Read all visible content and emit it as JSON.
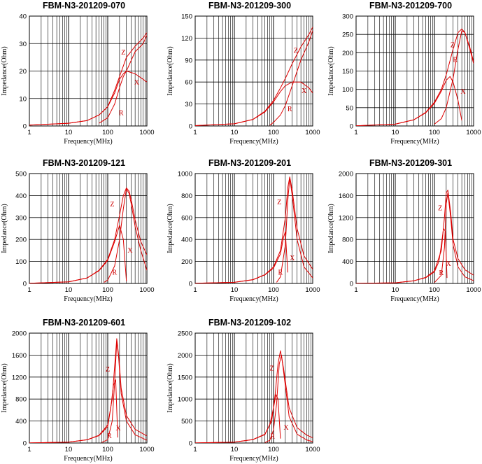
{
  "colors": {
    "curve": "#dd0000",
    "grid": "#000000",
    "background": "#ffffff"
  },
  "axes": {
    "xlabel": "Frequency(MHz)",
    "ylabel": "Impedance(Ohm)",
    "x_scale": "log",
    "xlim": [
      1,
      1000
    ],
    "x_ticks": [
      "1",
      "10",
      "100",
      "1000"
    ]
  },
  "chart_data": [
    {
      "type": "line",
      "title": "FBM-N3-201209-070",
      "xlabel": "Frequency(MHz)",
      "ylabel": "Impedance(Ohm)",
      "x_scale": "log",
      "xlim": [
        1,
        1000
      ],
      "ylim": [
        0,
        40
      ],
      "y_ticks": [
        0,
        10,
        20,
        30,
        40
      ],
      "series": [
        {
          "name": "Z",
          "x": [
            1,
            10,
            30,
            60,
            100,
            150,
            200,
            300,
            500,
            800,
            1000
          ],
          "values": [
            0.3,
            1,
            2,
            4,
            7,
            13,
            18,
            25,
            29,
            32,
            34
          ]
        },
        {
          "name": "R",
          "x": [
            60,
            100,
            150,
            200,
            250,
            300,
            500,
            800,
            1000
          ],
          "values": [
            1,
            3,
            8,
            14,
            18,
            20,
            27,
            30,
            33
          ]
        },
        {
          "name": "X",
          "x": [
            1,
            10,
            30,
            60,
            100,
            150,
            200,
            250,
            300,
            500,
            800,
            1000
          ],
          "values": [
            0.3,
            1,
            2,
            4,
            7,
            12,
            17,
            19,
            20,
            19,
            17,
            16
          ]
        }
      ],
      "labels": [
        {
          "text": "Z",
          "x": 250,
          "y": 26
        },
        {
          "text": "R",
          "x": 220,
          "y": 4
        },
        {
          "text": "X",
          "x": 550,
          "y": 15
        }
      ]
    },
    {
      "type": "line",
      "title": "FBM-N3-201209-300",
      "xlabel": "Frequency(MHz)",
      "ylabel": "Impedance(Ohm)",
      "x_scale": "log",
      "xlim": [
        1,
        1000
      ],
      "ylim": [
        0,
        150
      ],
      "y_ticks": [
        0,
        30,
        60,
        90,
        120,
        150
      ],
      "series": [
        {
          "name": "Z",
          "x": [
            1,
            10,
            30,
            60,
            100,
            150,
            200,
            300,
            500,
            800,
            1000
          ],
          "values": [
            0.5,
            3,
            9,
            20,
            35,
            52,
            65,
            85,
            108,
            125,
            135
          ]
        },
        {
          "name": "R",
          "x": [
            80,
            100,
            150,
            200,
            300,
            500,
            800,
            1000
          ],
          "values": [
            1,
            5,
            15,
            28,
            55,
            90,
            115,
            130
          ]
        },
        {
          "name": "X",
          "x": [
            1,
            10,
            30,
            60,
            100,
            150,
            200,
            300,
            500,
            800,
            1000
          ],
          "values": [
            0.5,
            3,
            9,
            19,
            33,
            47,
            55,
            60,
            60,
            52,
            45
          ]
        }
      ],
      "labels": [
        {
          "text": "Z",
          "x": 370,
          "y": 100
        },
        {
          "text": "R",
          "x": 260,
          "y": 20
        },
        {
          "text": "X",
          "x": 600,
          "y": 45
        }
      ]
    },
    {
      "type": "line",
      "title": "FBM-N3-201209-700",
      "xlabel": "Frequency(MHz)",
      "ylabel": "Impedance(Ohm)",
      "x_scale": "log",
      "xlim": [
        1,
        1000
      ],
      "ylim": [
        0,
        300
      ],
      "y_ticks": [
        0,
        50,
        100,
        150,
        200,
        250,
        300
      ],
      "series": [
        {
          "name": "Z",
          "x": [
            1,
            10,
            30,
            60,
            100,
            150,
            200,
            300,
            400,
            500,
            600,
            800,
            1000
          ],
          "values": [
            0.5,
            5,
            17,
            37,
            65,
            100,
            140,
            210,
            255,
            265,
            255,
            215,
            175
          ]
        },
        {
          "name": "R",
          "x": [
            100,
            150,
            200,
            300,
            400,
            500,
            600,
            800,
            1000
          ],
          "values": [
            5,
            20,
            50,
            130,
            210,
            260,
            255,
            210,
            170
          ]
        },
        {
          "name": "X",
          "x": [
            1,
            10,
            30,
            60,
            100,
            150,
            200,
            250,
            300,
            400,
            500
          ],
          "values": [
            0.5,
            5,
            17,
            36,
            62,
            95,
            125,
            135,
            120,
            70,
            15
          ]
        }
      ],
      "labels": [
        {
          "text": "Z",
          "x": 290,
          "y": 215
        },
        {
          "text": "R",
          "x": 340,
          "y": 175
        },
        {
          "text": "X",
          "x": 540,
          "y": 88
        }
      ]
    },
    {
      "type": "line",
      "title": "FBM-N3-201209-121",
      "xlabel": "Frequency(MHz)",
      "ylabel": "Impedance(Ohm)",
      "x_scale": "log",
      "xlim": [
        1,
        1000
      ],
      "ylim": [
        0,
        500
      ],
      "y_ticks": [
        0,
        100,
        200,
        300,
        400,
        500
      ],
      "series": [
        {
          "name": "Z",
          "x": [
            1,
            10,
            30,
            60,
            100,
            150,
            200,
            250,
            300,
            350,
            400,
            500,
            700,
            1000
          ],
          "values": [
            0.5,
            7,
            25,
            60,
            110,
            200,
            310,
            400,
            435,
            420,
            380,
            290,
            190,
            130
          ]
        },
        {
          "name": "R",
          "x": [
            80,
            100,
            150,
            200,
            250,
            300,
            350,
            400,
            500,
            700,
            1000
          ],
          "values": [
            5,
            15,
            80,
            200,
            340,
            430,
            410,
            360,
            260,
            150,
            60
          ]
        },
        {
          "name": "X",
          "x": [
            1,
            10,
            30,
            60,
            100,
            150,
            200,
            250,
            300
          ],
          "values": [
            0.5,
            7,
            25,
            58,
            105,
            190,
            265,
            200,
            10
          ]
        }
      ],
      "labels": [
        {
          "text": "Z",
          "x": 130,
          "y": 350
        },
        {
          "text": "R",
          "x": 150,
          "y": 40
        },
        {
          "text": "X",
          "x": 370,
          "y": 140
        }
      ]
    },
    {
      "type": "line",
      "title": "FBM-N3-201209-201",
      "xlabel": "Frequency(MHz)",
      "ylabel": "Impedance(Ohm)",
      "x_scale": "log",
      "xlim": [
        1,
        1000
      ],
      "ylim": [
        0,
        1000
      ],
      "y_ticks": [
        0,
        200,
        400,
        600,
        800,
        1000
      ],
      "series": [
        {
          "name": "Z",
          "x": [
            1,
            10,
            30,
            60,
            100,
            150,
            200,
            230,
            260,
            300,
            400,
            600,
            1000
          ],
          "values": [
            1,
            10,
            35,
            80,
            150,
            300,
            600,
            870,
            970,
            850,
            500,
            250,
            130
          ]
        },
        {
          "name": "R",
          "x": [
            120,
            150,
            200,
            230,
            260,
            300,
            400,
            600,
            1000
          ],
          "values": [
            10,
            60,
            350,
            750,
            960,
            800,
            400,
            150,
            50
          ]
        },
        {
          "name": "X",
          "x": [
            1,
            10,
            30,
            60,
            100,
            150,
            180,
            200,
            230
          ],
          "values": [
            1,
            10,
            34,
            78,
            140,
            270,
            420,
            470,
            100
          ]
        }
      ],
      "labels": [
        {
          "text": "Z",
          "x": 140,
          "y": 720
        },
        {
          "text": "R",
          "x": 150,
          "y": 80
        },
        {
          "text": "X",
          "x": 300,
          "y": 210
        }
      ]
    },
    {
      "type": "line",
      "title": "FBM-N3-201209-301",
      "xlabel": "Frequency(MHz)",
      "ylabel": "Impedance(Ohm)",
      "x_scale": "log",
      "xlim": [
        1,
        1000
      ],
      "ylim": [
        0,
        2000
      ],
      "y_ticks": [
        0,
        400,
        800,
        1200,
        1600,
        2000
      ],
      "series": [
        {
          "name": "Z",
          "x": [
            1,
            10,
            30,
            60,
            100,
            150,
            180,
            200,
            220,
            260,
            300,
            400,
            600,
            1000
          ],
          "values": [
            1,
            12,
            50,
            110,
            230,
            600,
            1200,
            1650,
            1700,
            1300,
            800,
            450,
            250,
            150
          ]
        },
        {
          "name": "R",
          "x": [
            100,
            150,
            180,
            200,
            220,
            260,
            300,
            400,
            600,
            1000
          ],
          "values": [
            15,
            150,
            650,
            1450,
            1650,
            1200,
            700,
            300,
            120,
            50
          ]
        },
        {
          "name": "X",
          "x": [
            1,
            10,
            30,
            60,
            100,
            130,
            150,
            170,
            190,
            210
          ],
          "values": [
            1,
            12,
            48,
            105,
            210,
            400,
            700,
            1000,
            950,
            100
          ]
        }
      ],
      "labels": [
        {
          "text": "Z",
          "x": 140,
          "y": 1330
        },
        {
          "text": "R",
          "x": 150,
          "y": 150
        },
        {
          "text": "X",
          "x": 230,
          "y": 320
        }
      ]
    },
    {
      "type": "line",
      "title": "FBM-N3-201209-601",
      "xlabel": "Frequency(MHz)",
      "ylabel": "Impedance(Ohm)",
      "x_scale": "log",
      "xlim": [
        1,
        1000
      ],
      "ylim": [
        0,
        2000
      ],
      "y_ticks": [
        0,
        400,
        800,
        1200,
        1600,
        2000
      ],
      "series": [
        {
          "name": "Z",
          "x": [
            1,
            10,
            30,
            60,
            100,
            130,
            150,
            170,
            190,
            220,
            300,
            500,
            1000
          ],
          "values": [
            1,
            15,
            60,
            140,
            330,
            800,
            1400,
            1900,
            1600,
            1000,
            500,
            250,
            130
          ]
        },
        {
          "name": "R",
          "x": [
            70,
            100,
            130,
            150,
            170,
            190,
            220,
            300,
            500,
            1000
          ],
          "values": [
            10,
            60,
            400,
            1100,
            1850,
            1550,
            900,
            400,
            150,
            50
          ]
        },
        {
          "name": "X",
          "x": [
            1,
            10,
            30,
            60,
            100,
            120,
            140,
            160,
            180
          ],
          "values": [
            1,
            15,
            58,
            135,
            300,
            650,
            1050,
            1150,
            100
          ]
        }
      ],
      "labels": [
        {
          "text": "Z",
          "x": 100,
          "y": 1300
        },
        {
          "text": "R",
          "x": 110,
          "y": 90
        },
        {
          "text": "X",
          "x": 185,
          "y": 230
        }
      ]
    },
    {
      "type": "line",
      "title": "FBM-N3-201209-102",
      "xlabel": "Frequency(MHz)",
      "ylabel": "Impedance(Ohm)",
      "x_scale": "log",
      "xlim": [
        1,
        1000
      ],
      "ylim": [
        0,
        2500
      ],
      "y_ticks": [
        0,
        500,
        1000,
        1500,
        2000,
        2500
      ],
      "series": [
        {
          "name": "Z",
          "x": [
            1,
            10,
            30,
            60,
            90,
            110,
            130,
            150,
            180,
            250,
            400,
            700,
            1000
          ],
          "values": [
            1,
            20,
            80,
            200,
            500,
            1100,
            1800,
            2100,
            1700,
            800,
            350,
            180,
            120
          ]
        },
        {
          "name": "R",
          "x": [
            60,
            80,
            100,
            120,
            140,
            160,
            200,
            250,
            400,
            700,
            1000
          ],
          "values": [
            10,
            60,
            300,
            900,
            1800,
            2000,
            1300,
            600,
            200,
            70,
            30
          ]
        },
        {
          "name": "X",
          "x": [
            1,
            10,
            30,
            60,
            80,
            100,
            115,
            130,
            150
          ],
          "values": [
            1,
            20,
            78,
            190,
            420,
            800,
            1100,
            1000,
            100
          ]
        }
      ],
      "labels": [
        {
          "text": "Z",
          "x": 90,
          "y": 1650
        },
        {
          "text": "R",
          "x": 95,
          "y": 100
        },
        {
          "text": "X",
          "x": 210,
          "y": 300
        }
      ]
    }
  ]
}
